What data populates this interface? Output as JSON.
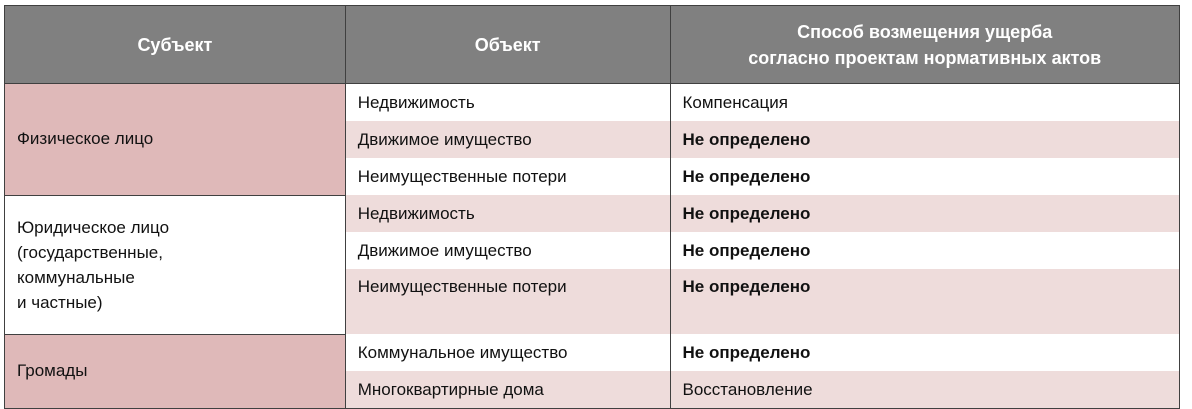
{
  "headers": {
    "subject": "Субъект",
    "object": "Объект",
    "method_line1": "Способ возмещения ущерба",
    "method_line2": "согласно проектам нормативных актов"
  },
  "colors": {
    "header_bg": "#808080",
    "subject_bg": "#dfb9b9",
    "row_shade": "#eedcdb",
    "border": "#404040"
  },
  "groups": [
    {
      "subject": "Физическое лицо"
    },
    {
      "subject_lines": [
        "Юридическое лицо",
        "(государственные,",
        "коммунальные",
        "и частные)"
      ]
    },
    {
      "subject": "Громады"
    }
  ],
  "rows": [
    {
      "object": "Недвижимость",
      "method": "Компенсация",
      "bold": false
    },
    {
      "object": "Движимое имущество",
      "method": "Не определено",
      "bold": true
    },
    {
      "object": "Неимущественные потери",
      "method": "Не определено",
      "bold": true
    },
    {
      "object": "Недвижимость",
      "method": "Не определено",
      "bold": true
    },
    {
      "object": "Движимое имущество",
      "method": "Не определено",
      "bold": true
    },
    {
      "object": "Неимущественные потери",
      "method": "Не определено",
      "bold": true
    },
    {
      "object": "Коммунальное имущество",
      "method": "Не определено",
      "bold": true
    },
    {
      "object": "Многоквартирные дома",
      "method": "Восстановление",
      "bold": false
    }
  ]
}
